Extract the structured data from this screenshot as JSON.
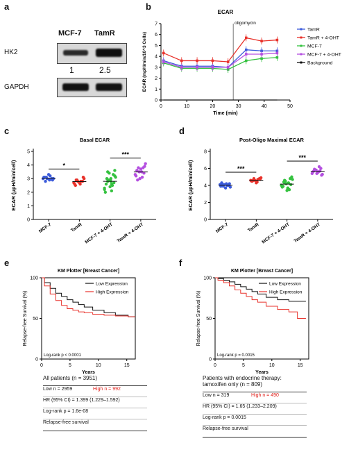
{
  "panel_a": {
    "label": "a",
    "cell1": "MCF-7",
    "cell2": "TamR",
    "band1": "HK2",
    "band2": "GAPDH",
    "ratio1": "1",
    "ratio2": "2.5"
  },
  "panel_b": {
    "label": "b"
  },
  "panel_c": {
    "label": "c"
  },
  "panel_d": {
    "label": "d"
  },
  "panel_e": {
    "label": "e",
    "table": {
      "title": "All patients (n = 3951)",
      "low": "Low n = 2959",
      "high": "High n = 992",
      "hr": "HR (95% CI) = 1.399 (1.229–1.592)",
      "logrank": "Log-rank p = 1.6e-08",
      "endpoint": "Relapse-free survival"
    }
  },
  "panel_f": {
    "label": "f",
    "table": {
      "title1": "Patients with endocrine therapy:",
      "title2": "tamoxifen only (n = 809)",
      "low": "Low n = 319",
      "high": "High n = 490",
      "hr": "HR (95% CI) = 1.65 (1.233–2.209)",
      "logrank": "Log-rank p = 0.0015",
      "endpoint": "Relapse-free survival"
    }
  },
  "colors": {
    "TamR": "#3b5bdb",
    "TamR_4OHT": "#e8322b",
    "MCF7": "#35c240",
    "MCF7_4OHT": "#b44fe0",
    "Background": "#111111",
    "low_expr": "#111111",
    "high_expr": "#e8322b"
  },
  "chart_data": [
    {
      "id": "ecar_time",
      "type": "line",
      "title": "ECAR",
      "xlabel": "Time (min)",
      "ylabel": "ECAR (mpH/min/10^3 Cells)",
      "xlim": [
        0,
        50
      ],
      "ylim": [
        0,
        7
      ],
      "xticks": [
        0,
        10,
        20,
        30,
        40,
        50
      ],
      "yticks": [
        0,
        1,
        2,
        3,
        4,
        5,
        6,
        7
      ],
      "annotation": {
        "text": "oligomycin",
        "x": 28
      },
      "x": [
        1,
        8,
        14,
        20,
        26,
        33,
        39,
        45
      ],
      "series": [
        {
          "name": "TamR",
          "color": "#3b5bdb",
          "values": [
            3.6,
            3.1,
            3.1,
            3.1,
            3.0,
            4.6,
            4.5,
            4.5
          ]
        },
        {
          "name": "TamR + 4-OHT",
          "color": "#e8322b",
          "values": [
            4.3,
            3.6,
            3.6,
            3.6,
            3.5,
            5.7,
            5.4,
            5.5
          ]
        },
        {
          "name": "MCF-7",
          "color": "#35c240",
          "values": [
            3.4,
            2.9,
            2.9,
            2.9,
            2.8,
            3.6,
            3.8,
            3.9
          ]
        },
        {
          "name": "MCF-7 + 4-OHT",
          "color": "#b44fe0",
          "values": [
            3.5,
            3.0,
            3.0,
            3.0,
            3.0,
            4.2,
            4.2,
            4.3
          ]
        },
        {
          "name": "Background",
          "color": "#111111",
          "values": [
            0,
            0,
            0,
            0,
            0,
            0,
            0,
            0
          ]
        }
      ],
      "legend": "right"
    },
    {
      "id": "basal_ecar",
      "type": "scatter",
      "title": "Basal ECAR",
      "ylabel": "ECAR (μpH/min/cell)",
      "ylim": [
        0,
        5
      ],
      "yticks": [
        0,
        1,
        2,
        3,
        4,
        5
      ],
      "categories": [
        "MCF-7",
        "TamR",
        "MCF-7 + 4-OHT",
        "TamR + 4-OHT"
      ],
      "colors": [
        "#3b5bdb",
        "#e8322b",
        "#35c240",
        "#b44fe0"
      ],
      "groups": [
        [
          3.0,
          3.1,
          2.9,
          3.2,
          3.0,
          3.1,
          2.8,
          3.3,
          3.0,
          2.9,
          3.1,
          3.0
        ],
        [
          2.7,
          2.9,
          2.6,
          2.8,
          3.0,
          2.5,
          2.9,
          2.7,
          2.8,
          3.1,
          2.6,
          2.8
        ],
        [
          2.3,
          3.5,
          2.8,
          2.1,
          3.2,
          2.6,
          3.0,
          2.4,
          3.3,
          2.7,
          2.0,
          2.9,
          3.4,
          2.5,
          3.1,
          2.2,
          2.8,
          3.0,
          2.6,
          3.6
        ],
        [
          3.3,
          3.8,
          3.5,
          3.1,
          4.1,
          3.6,
          2.9,
          3.7,
          3.4,
          3.9,
          3.2,
          3.5,
          3.0,
          3.8
        ]
      ],
      "significance": [
        {
          "between": [
            0,
            1
          ],
          "label": "*"
        },
        {
          "between": [
            2,
            3
          ],
          "label": "***"
        }
      ]
    },
    {
      "id": "post_oligo_ecar",
      "type": "scatter",
      "title": "Post-Oligo Maximal ECAR",
      "ylabel": "ECAR (μpH/min/cell)",
      "ylim": [
        0,
        8
      ],
      "yticks": [
        0,
        2,
        4,
        6,
        8
      ],
      "categories": [
        "MCF-7",
        "TamR",
        "MCF-7 + 4-OHT",
        "TamR + 4-OHT"
      ],
      "colors": [
        "#3b5bdb",
        "#e8322b",
        "#35c240",
        "#b44fe0"
      ],
      "groups": [
        [
          4.1,
          3.9,
          4.2,
          4.0,
          3.8,
          4.3,
          4.1,
          3.7,
          4.0,
          4.2,
          3.9,
          4.1
        ],
        [
          4.6,
          4.8,
          4.4,
          4.7,
          4.9,
          4.5,
          4.6,
          4.3,
          4.8,
          4.7,
          4.5,
          4.6
        ],
        [
          4.0,
          4.6,
          3.6,
          4.3,
          5.0,
          3.9,
          4.4,
          3.4,
          4.8,
          4.1,
          3.8,
          4.5,
          4.2,
          3.5,
          4.7,
          4.0,
          4.3,
          3.7
        ],
        [
          5.4,
          5.8,
          5.6,
          6.2,
          5.3,
          5.7,
          5.9,
          5.5,
          6.0,
          5.2,
          5.6,
          5.8,
          5.4,
          5.7
        ]
      ],
      "significance": [
        {
          "between": [
            0,
            1
          ],
          "label": "***"
        },
        {
          "between": [
            2,
            3
          ],
          "label": "***"
        }
      ]
    },
    {
      "id": "km_all",
      "type": "line",
      "title": "KM Plotter [Breast Cancer]",
      "xlabel": "Years",
      "ylabel": "Relapse-free Survival (%)",
      "xlim": [
        0,
        16.5
      ],
      "ylim": [
        0,
        100
      ],
      "xticks": [
        0,
        5,
        10,
        15
      ],
      "yticks": [
        0,
        50,
        100
      ],
      "annotation": {
        "text": "Log-rank p < 0.0001"
      },
      "series": [
        {
          "name": "Low Expression",
          "color": "#111111",
          "x": [
            0,
            1,
            2,
            3,
            4,
            5,
            6,
            7,
            8,
            10,
            12,
            14,
            16.5
          ],
          "values": [
            100,
            94,
            87,
            81,
            77,
            73,
            70,
            67,
            64,
            60,
            57,
            54,
            52
          ]
        },
        {
          "name": "High Expression",
          "color": "#e8322b",
          "x": [
            0,
            1,
            2,
            3,
            4,
            5,
            6,
            7,
            8,
            10,
            12,
            14,
            16.5
          ],
          "values": [
            100,
            90,
            80,
            72,
            66,
            62,
            60,
            58,
            57,
            55,
            54,
            53,
            52
          ]
        }
      ],
      "legend": "top-right"
    },
    {
      "id": "km_tamoxifen",
      "type": "line",
      "title": "KM Plotter [Breast Cancer]",
      "xlabel": "Years",
      "ylabel": "Relapse-free Survival (%)",
      "xlim": [
        0,
        16.5
      ],
      "ylim": [
        0,
        100
      ],
      "xticks": [
        0,
        5,
        10,
        15
      ],
      "yticks": [
        0,
        50,
        100
      ],
      "annotation": {
        "text": "Log-rank p = 0.0015"
      },
      "series": [
        {
          "name": "Low Expression",
          "color": "#111111",
          "x": [
            0,
            1,
            2,
            3,
            4,
            5,
            6,
            7,
            8,
            10,
            12,
            14,
            16
          ],
          "values": [
            100,
            99,
            97,
            95,
            92,
            89,
            86,
            83,
            80,
            76,
            73,
            71,
            71
          ]
        },
        {
          "name": "High Expression",
          "color": "#e8322b",
          "x": [
            0,
            1,
            2,
            3,
            4,
            5,
            6,
            7,
            8,
            10,
            12,
            14,
            15,
            16
          ],
          "values": [
            100,
            97,
            94,
            90,
            85,
            81,
            77,
            73,
            70,
            65,
            61,
            58,
            50,
            50
          ]
        }
      ],
      "legend": "top-right"
    }
  ]
}
